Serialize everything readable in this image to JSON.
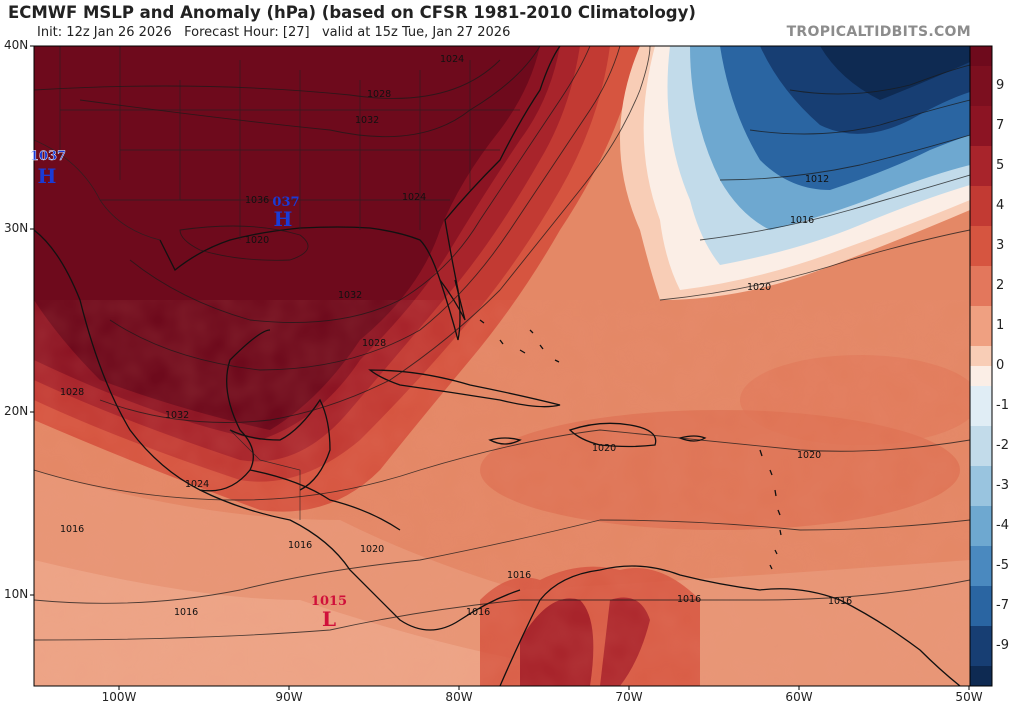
{
  "header": {
    "title": "ECMWF MSLP and Anomaly (hPa) (based on CFSR 1981-2010 Climatology)",
    "init": "Init: 12z Jan 26 2026",
    "forecast_hour": "Forecast Hour: [27]",
    "valid": "valid at 15z Tue, Jan 27 2026",
    "brand": "TROPICALTIDBITS.COM"
  },
  "axes": {
    "lat_labels": [
      "40N",
      "30N",
      "20N",
      "10N"
    ],
    "lon_labels": [
      "100W",
      "90W",
      "80W",
      "70W",
      "60W",
      "50W"
    ]
  },
  "colorbar": {
    "labels": [
      "9",
      "7",
      "5",
      "4",
      "3",
      "2",
      "1",
      "0",
      "-1",
      "-2",
      "-3",
      "-4",
      "-5",
      "-7",
      "-9"
    ],
    "colors": {
      "p9": "#6e0a1c",
      "p7": "#8c1423",
      "p5": "#a8242b",
      "p4": "#c23a33",
      "p3": "#d65540",
      "p2": "#e3775c",
      "p1": "#efa081",
      "p05": "#f8cdb6",
      "zero": "#fbeee6",
      "n1": "#e0edf5",
      "n2": "#c2dbea",
      "n3": "#99c4df",
      "n4": "#6ea8d0",
      "n5": "#4a89bf",
      "n7": "#2a65a2",
      "n9": "#173e73",
      "n10": "#0e2a52"
    }
  },
  "pressure_centers": [
    {
      "type": "H",
      "value": "1037",
      "color": "#1a3bd6"
    },
    {
      "type": "H",
      "value": "037",
      "color": "#1a3bd6"
    },
    {
      "type": "L",
      "value": "1015",
      "color": "#d0103a"
    }
  ],
  "isobar_labels": [
    "1024",
    "1028",
    "1032",
    "1036",
    "1032",
    "1028",
    "1024",
    "1028",
    "1032",
    "1016",
    "1020",
    "1012",
    "1016",
    "1020",
    "1024",
    "1020",
    "1020",
    "1016",
    "1016",
    "1016",
    "1016",
    "1016",
    "1016",
    "1020"
  ]
}
